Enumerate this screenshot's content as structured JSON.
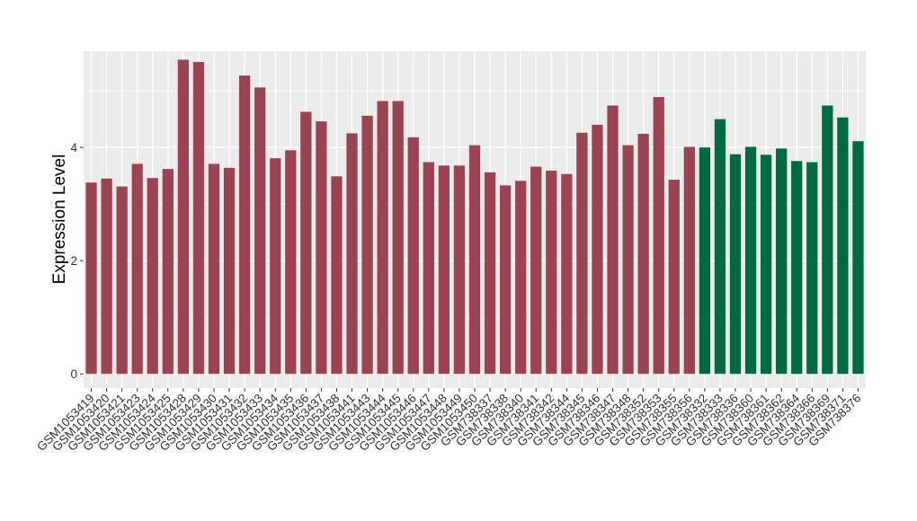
{
  "chart_data": {
    "type": "bar",
    "ylabel": "Expression Level",
    "xlabel": "",
    "ylim": [
      -0.25,
      5.7
    ],
    "yticks": [
      0,
      2,
      4
    ],
    "grid": true,
    "colors": {
      "group1": "#9a4352",
      "group2": "#006a43",
      "panel": "#ebebeb",
      "grid": "#ffffff"
    },
    "categories": [
      "GSM1053419",
      "GSM1053420",
      "GSM1053421",
      "GSM1053423",
      "GSM1053424",
      "GSM1053425",
      "GSM1053428",
      "GSM1053429",
      "GSM1053430",
      "GSM1053431",
      "GSM1053432",
      "GSM1053433",
      "GSM1053434",
      "GSM1053435",
      "GSM1053436",
      "GSM1053437",
      "GSM1053438",
      "GSM1053441",
      "GSM1053443",
      "GSM1053444",
      "GSM1053445",
      "GSM1053446",
      "GSM1053447",
      "GSM1053448",
      "GSM1053449",
      "GSM1053450",
      "GSM738337",
      "GSM738338",
      "GSM738340",
      "GSM738341",
      "GSM738342",
      "GSM738344",
      "GSM738345",
      "GSM738346",
      "GSM738347",
      "GSM738348",
      "GSM738352",
      "GSM738353",
      "GSM738355",
      "GSM738356",
      "GSM738332",
      "GSM738333",
      "GSM738336",
      "GSM738360",
      "GSM738361",
      "GSM738362",
      "GSM738364",
      "GSM738366",
      "GSM738369",
      "GSM738371",
      "GSM738376"
    ],
    "values": [
      3.38,
      3.45,
      3.31,
      3.71,
      3.46,
      3.62,
      5.55,
      5.51,
      3.71,
      3.64,
      5.27,
      5.06,
      3.81,
      3.95,
      4.63,
      4.46,
      3.49,
      4.25,
      4.56,
      4.82,
      4.82,
      4.18,
      3.74,
      3.68,
      3.68,
      4.04,
      3.56,
      3.33,
      3.41,
      3.66,
      3.59,
      3.53,
      4.26,
      4.4,
      4.74,
      4.04,
      4.24,
      4.89,
      3.43,
      4.01,
      4.0,
      4.5,
      3.88,
      4.01,
      3.87,
      3.98,
      3.76,
      3.74,
      4.74,
      4.53,
      4.11
    ],
    "groups": [
      "group1",
      "group1",
      "group1",
      "group1",
      "group1",
      "group1",
      "group1",
      "group1",
      "group1",
      "group1",
      "group1",
      "group1",
      "group1",
      "group1",
      "group1",
      "group1",
      "group1",
      "group1",
      "group1",
      "group1",
      "group1",
      "group1",
      "group1",
      "group1",
      "group1",
      "group1",
      "group1",
      "group1",
      "group1",
      "group1",
      "group1",
      "group1",
      "group1",
      "group1",
      "group1",
      "group1",
      "group1",
      "group1",
      "group1",
      "group1",
      "group2",
      "group2",
      "group2",
      "group2",
      "group2",
      "group2",
      "group2",
      "group2",
      "group2",
      "group2",
      "group2"
    ]
  }
}
